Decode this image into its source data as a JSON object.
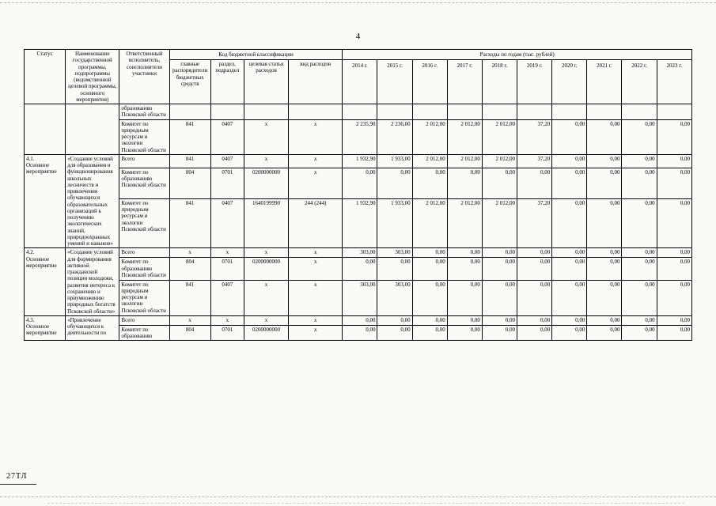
{
  "page": {
    "number": "4",
    "stamp": "27ТЛ"
  },
  "table": {
    "headers": {
      "status": "Статус",
      "name": "Наименование государственной программы, подпрограммы (ведомственной целевой программы, основного мероприятия)",
      "executor": "Ответственный исполнитель, соисполнители участники",
      "code_group": "Код бюджетной классификации",
      "code_cols": [
        "главные распорядители бюджетных средств",
        "раздел, подраздел",
        "целевая статья расходов",
        "вид расходов"
      ],
      "expenses_group": "Расходы по годам (тыс. рублей)",
      "years": [
        "2014 г.",
        "2015 г.",
        "2016 г.",
        "2017 г.",
        "2018 г.",
        "2019 г.",
        "2020 г.",
        "2021 г.",
        "2022 г.",
        "2023 г."
      ]
    },
    "blocks": [
      {
        "status": "",
        "name": "",
        "rows": [
          {
            "executor": "образованию Псковской области",
            "codes": [
              "",
              "",
              "",
              ""
            ],
            "values": [
              "",
              "",
              "",
              "",
              "",
              "",
              "",
              "",
              "",
              ""
            ]
          },
          {
            "executor": "Комитет по природным ресурсам и экологии Псковской области",
            "codes": [
              "841",
              "0407",
              "x",
              "x"
            ],
            "values": [
              "2 235,90",
              "2 236,00",
              "2 012,00",
              "2 012,00",
              "2 012,00",
              "37,20",
              "0,00",
              "0,00",
              "0,00",
              "0,00"
            ]
          }
        ]
      },
      {
        "status": "4.1.\nОсновное мероприятие",
        "name": "«Создание условий для образования и функционирования школьных лесничеств и привлечения обучающихся образовательных организаций к получению экологических знаний, природоохранных умений и навыков»",
        "rows": [
          {
            "executor": "Всего",
            "codes": [
              "841",
              "0407",
              "x",
              "x"
            ],
            "values": [
              "1 932,90",
              "1 933,00",
              "2 012,00",
              "2 012,00",
              "2 012,00",
              "37,20",
              "0,00",
              "0,00",
              "0,00",
              "0,00"
            ]
          },
          {
            "executor": "Комитет по образованию Псковской области",
            "codes": [
              "804",
              "0701",
              "0200000000",
              "x"
            ],
            "values": [
              "0,00",
              "0,00",
              "0,00",
              "0,00",
              "0,00",
              "0,00",
              "0,00",
              "0,00",
              "0,00",
              "0,00"
            ]
          },
          {
            "executor": "Комитет по природным ресурсам и экологии Псковской области",
            "codes": [
              "841",
              "0407",
              "1640199990",
              "244 (244)"
            ],
            "values": [
              "1 932,90",
              "1 933,00",
              "2 012,00",
              "2 012,00",
              "2 012,00",
              "37,20",
              "0,00",
              "0,00",
              "0,00",
              "0,00"
            ]
          }
        ]
      },
      {
        "status": "4.2.\nОсновное мероприятие",
        "name": "«Создание условий для формирования активной гражданской позиции молодежи, развития интереса к сохранению и приумножению природных богатств Псковской области»",
        "rows": [
          {
            "executor": "Всего",
            "codes": [
              "x",
              "x",
              "x",
              "x"
            ],
            "values": [
              "303,00",
              "303,00",
              "0,00",
              "0,00",
              "0,00",
              "0,00",
              "0,00",
              "0,00",
              "0,00",
              "0,00"
            ]
          },
          {
            "executor": "Комитет по образованию Псковской области",
            "codes": [
              "804",
              "0701",
              "0200000000",
              "x"
            ],
            "values": [
              "0,00",
              "0,00",
              "0,00",
              "0,00",
              "0,00",
              "0,00",
              "0,00",
              "0,00",
              "0,00",
              "0,00"
            ]
          },
          {
            "executor": "Комитет по природным ресурсам и экологии Псковской области",
            "codes": [
              "841",
              "0407",
              "x",
              "x"
            ],
            "values": [
              "303,00",
              "303,00",
              "0,00",
              "0,00",
              "0,00",
              "0,00",
              "0,00",
              "0,00",
              "0,00",
              "0,00"
            ]
          }
        ]
      },
      {
        "status": "4.3.\nОсновное мероприятие",
        "name": "«Привлечение обучающихся к деятельности по",
        "rows": [
          {
            "executor": "Всего",
            "codes": [
              "x",
              "x",
              "x",
              "x"
            ],
            "values": [
              "0,00",
              "0,00",
              "0,00",
              "0,00",
              "0,00",
              "0,00",
              "0,00",
              "0,00",
              "0,00",
              "0,00"
            ]
          },
          {
            "executor": "Комитет по образованию",
            "codes": [
              "804",
              "0701",
              "0200000000",
              "x"
            ],
            "values": [
              "0,00",
              "0,00",
              "0,00",
              "0,00",
              "0,00",
              "0,00",
              "0,00",
              "0,00",
              "0,00",
              "0,00"
            ]
          }
        ]
      }
    ]
  }
}
